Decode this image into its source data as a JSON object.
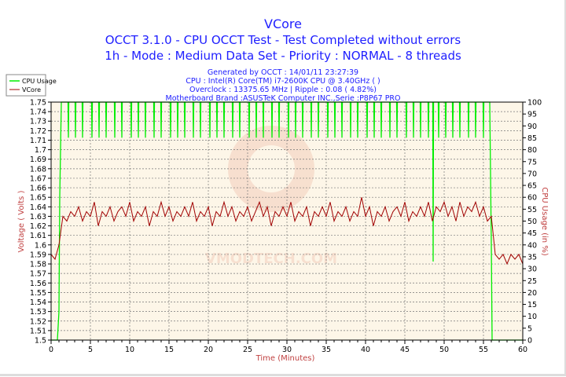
{
  "header": {
    "title": "VCore",
    "line2": "OCCT 3.1.0 - CPU OCCT Test - Test Completed without errors",
    "line3": "1h - Mode : Medium Data Set - Priority : NORMAL - 8 threads",
    "info1": "Generated by OCCT : 14/01/11 23:27:39",
    "info2": "CPU : Intel(R) Core(TM) i7-2600K CPU @ 3.40GHz ( )",
    "info3": "Overclock : 13375.65 MHz | Ripple : 0.08 ( 4.82%)",
    "info4": "Motherboard Brand :ASUSTeK Computer INC.,Serie :P8P67 PRO"
  },
  "watermark": "VMODTECH.COM",
  "colors": {
    "title": "#2020ff",
    "cpu": "#00ee00",
    "vcore": "#a00000",
    "axis_label": "#c04040",
    "plot_bg": "#fdf6e8"
  },
  "chart_data": {
    "type": "line",
    "xlabel": "Time (Minutes)",
    "ylabel": "Voltage ( Volts )",
    "y2label": "CPU Usage (in %)",
    "xlim": [
      0,
      60
    ],
    "ylim": [
      1.5,
      1.75
    ],
    "y2lim": [
      0,
      100
    ],
    "xticks": [
      0,
      5,
      10,
      15,
      20,
      25,
      30,
      35,
      40,
      45,
      50,
      55,
      60
    ],
    "yticks": [
      1.5,
      1.51,
      1.52,
      1.53,
      1.54,
      1.55,
      1.56,
      1.57,
      1.58,
      1.59,
      1.6,
      1.61,
      1.62,
      1.63,
      1.64,
      1.65,
      1.66,
      1.67,
      1.68,
      1.69,
      1.7,
      1.71,
      1.72,
      1.73,
      1.74,
      1.75
    ],
    "y2ticks": [
      0,
      5,
      10,
      15,
      20,
      25,
      30,
      35,
      40,
      45,
      50,
      55,
      60,
      65,
      70,
      75,
      80,
      85,
      90,
      95,
      100
    ],
    "grid": true,
    "legend": {
      "position": "top-left",
      "entries": [
        "CPU Usage",
        "VCore"
      ]
    },
    "series": [
      {
        "name": "VCore",
        "axis": "left",
        "x_step": 0.5,
        "values": [
          1.59,
          1.585,
          1.6,
          1.63,
          1.625,
          1.635,
          1.63,
          1.64,
          1.625,
          1.635,
          1.63,
          1.645,
          1.62,
          1.635,
          1.63,
          1.64,
          1.625,
          1.635,
          1.64,
          1.63,
          1.645,
          1.625,
          1.635,
          1.63,
          1.64,
          1.62,
          1.635,
          1.63,
          1.645,
          1.63,
          1.64,
          1.625,
          1.635,
          1.63,
          1.64,
          1.63,
          1.645,
          1.625,
          1.635,
          1.63,
          1.64,
          1.62,
          1.635,
          1.63,
          1.645,
          1.63,
          1.64,
          1.625,
          1.635,
          1.63,
          1.64,
          1.625,
          1.635,
          1.645,
          1.63,
          1.64,
          1.62,
          1.635,
          1.63,
          1.64,
          1.63,
          1.645,
          1.625,
          1.635,
          1.63,
          1.64,
          1.62,
          1.635,
          1.63,
          1.64,
          1.63,
          1.645,
          1.625,
          1.635,
          1.63,
          1.64,
          1.625,
          1.635,
          1.63,
          1.65,
          1.63,
          1.64,
          1.62,
          1.635,
          1.63,
          1.64,
          1.625,
          1.635,
          1.64,
          1.63,
          1.645,
          1.625,
          1.635,
          1.63,
          1.64,
          1.63,
          1.645,
          1.625,
          1.64,
          1.635,
          1.645,
          1.63,
          1.64,
          1.625,
          1.645,
          1.63,
          1.64,
          1.635,
          1.645,
          1.63,
          1.64,
          1.625,
          1.63,
          1.59,
          1.585,
          1.59,
          1.58,
          1.59,
          1.585,
          1.59,
          1.58
        ]
      },
      {
        "name": "CPU Usage",
        "axis": "right",
        "baseline": [
          [
            0,
            0
          ],
          [
            0.8,
            0
          ],
          [
            1.0,
            12
          ],
          [
            1.1,
            60
          ],
          [
            1.3,
            100
          ],
          [
            55.8,
            100
          ],
          [
            56.0,
            40
          ],
          [
            56.1,
            0
          ],
          [
            60,
            0
          ]
        ],
        "dip_value": 85,
        "dip_times": [
          2.2,
          3.1,
          4.0,
          5.2,
          6.1,
          7.0,
          8.1,
          9.0,
          10.2,
          11.1,
          12.0,
          13.1,
          14.0,
          15.2,
          16.1,
          17.0,
          18.1,
          19.0,
          20.2,
          21.1,
          22.0,
          23.1,
          24.0,
          25.2,
          26.1,
          27.0,
          28.1,
          29.0,
          30.2,
          31.1,
          32.0,
          33.1,
          34.0,
          35.2,
          36.1,
          37.0,
          38.1,
          39.0,
          40.2,
          41.1,
          42.0,
          43.1,
          44.0,
          45.2,
          46.1,
          47.0,
          48.0,
          49.3,
          50.2,
          51.1,
          52.0,
          53.1,
          54.0,
          55.0
        ],
        "deep_dip": {
          "time": 48.6,
          "value": 33
        }
      }
    ]
  }
}
